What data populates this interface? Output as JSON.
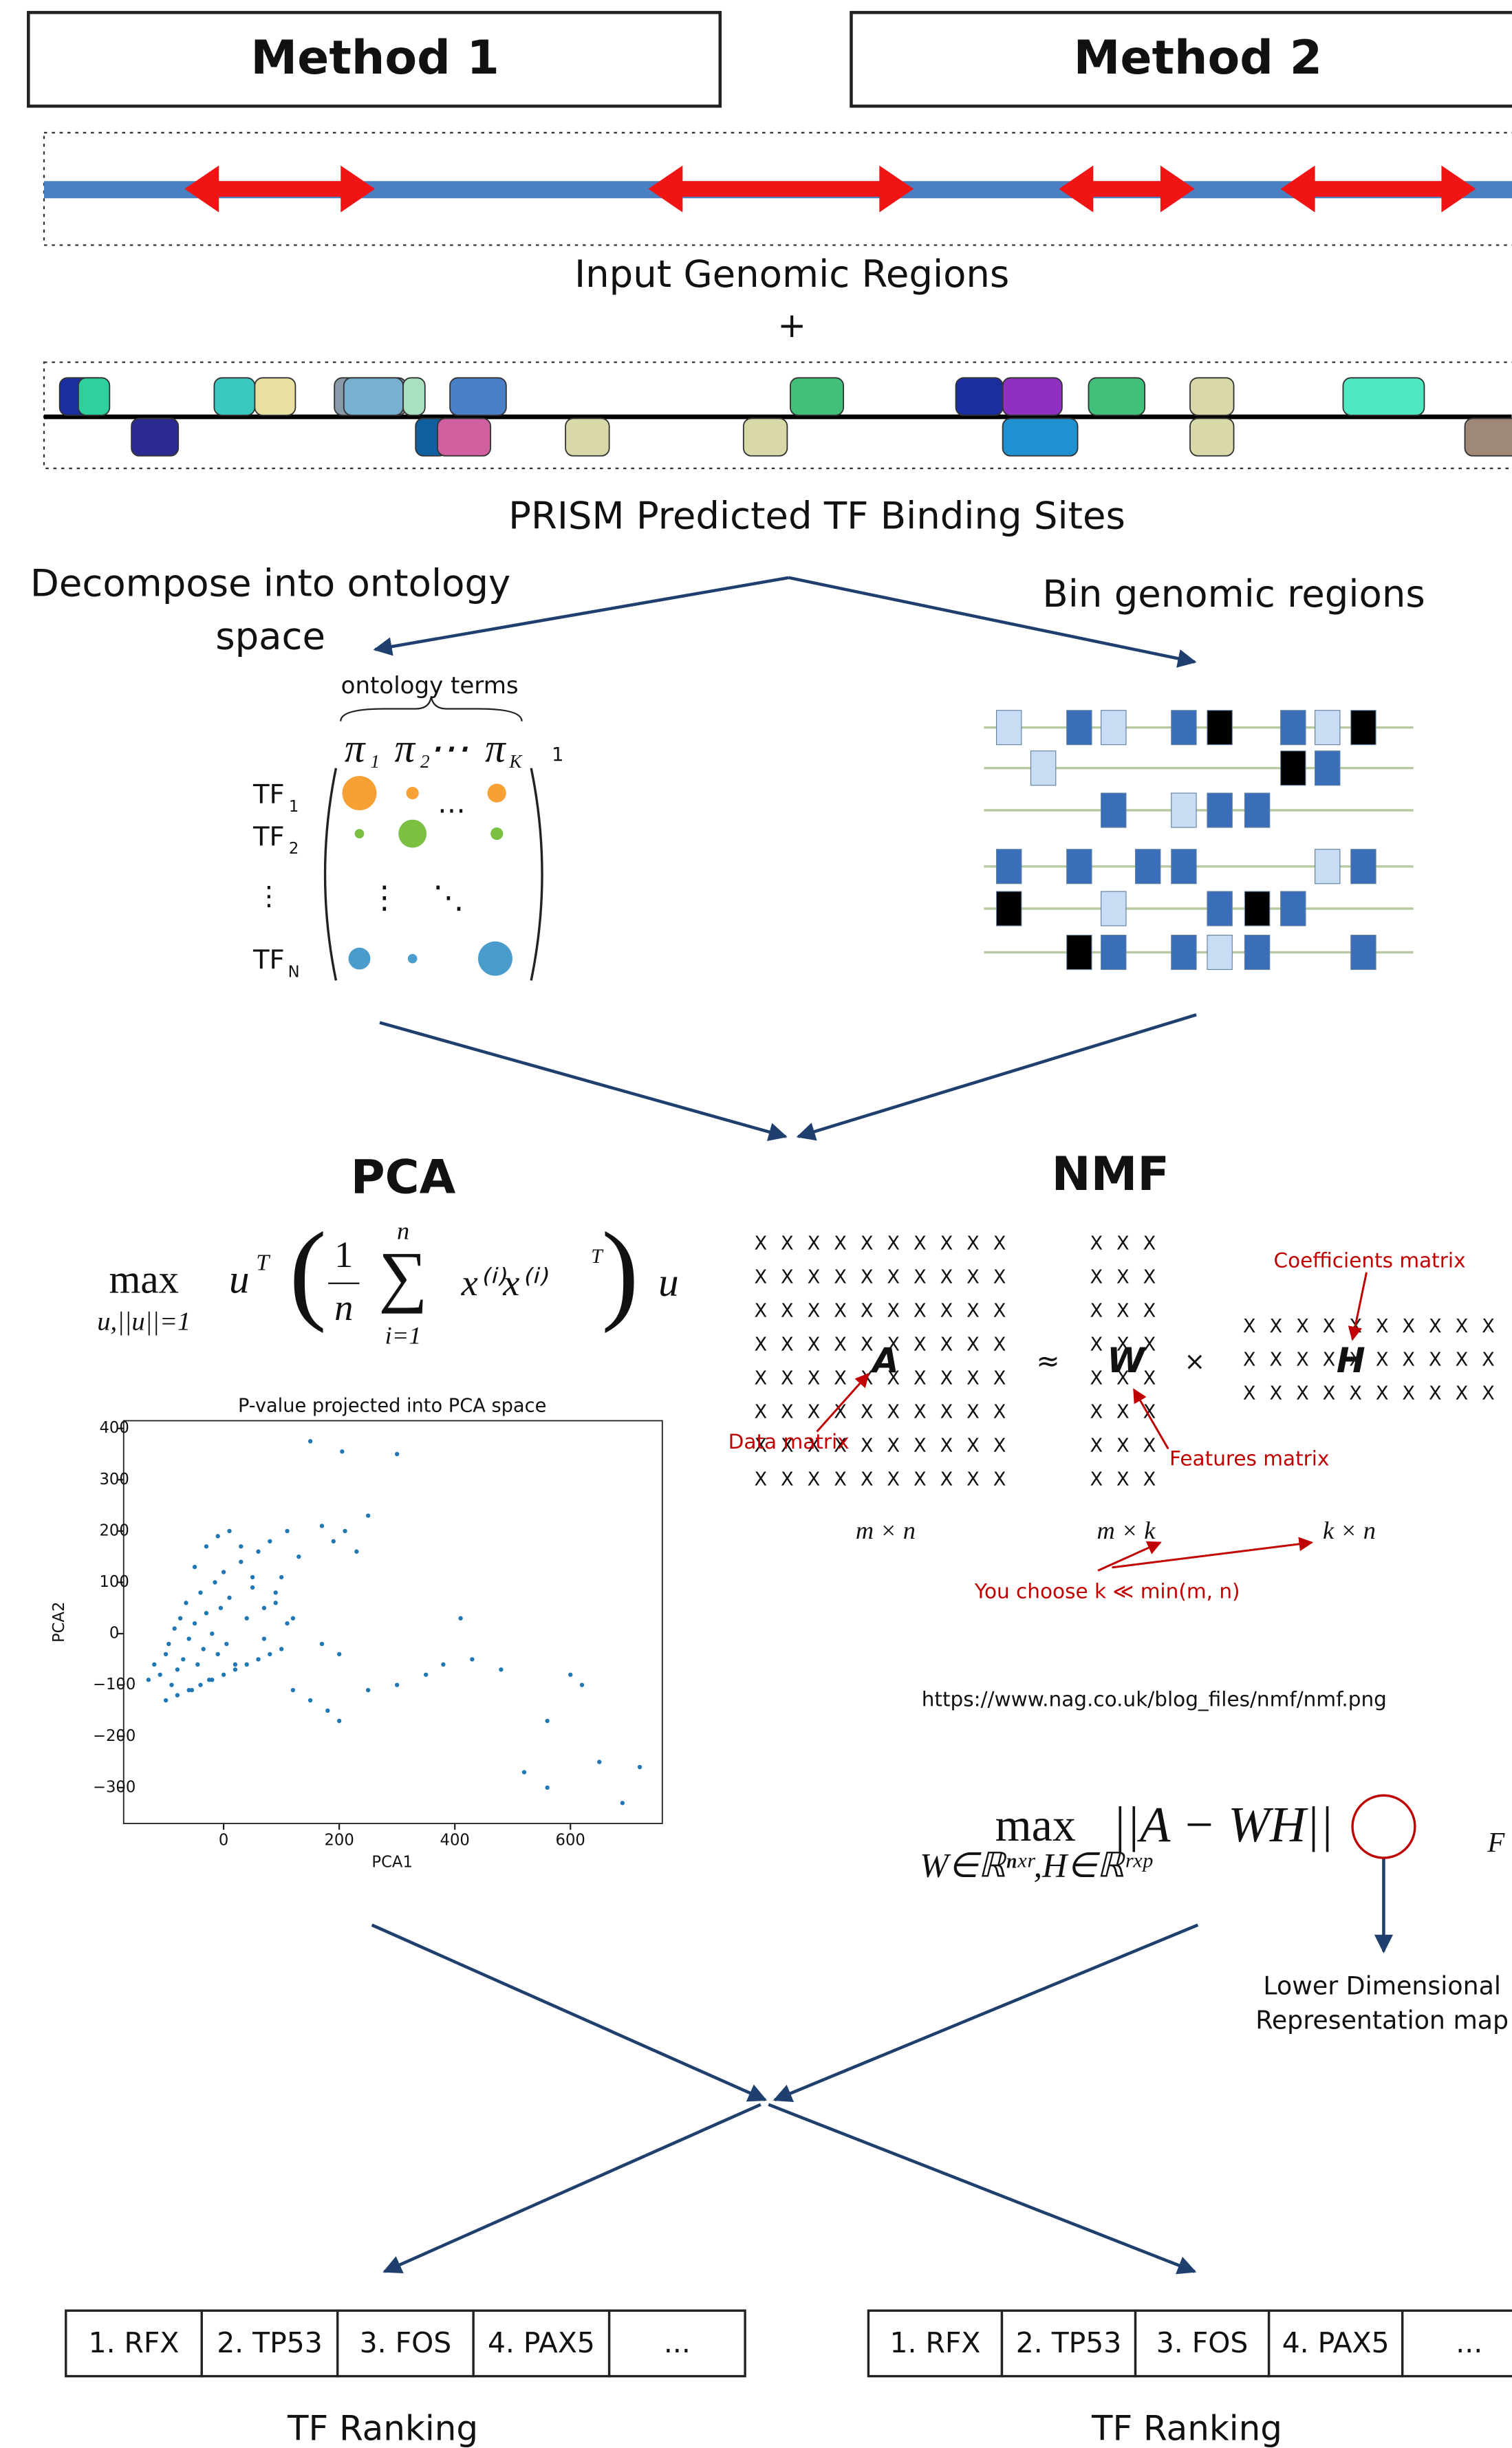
{
  "methods": [
    "Method 1",
    "Method 2"
  ],
  "input_label": "Input Genomic Regions",
  "plus": "+",
  "prism_label": "PRISM Predicted TF Binding Sites",
  "left_branch": [
    "Decompose into ontology",
    "space"
  ],
  "right_branch": "Bin genomic regions",
  "ontology": {
    "brace_label": "ontology terms",
    "columns": [
      "π",
      "π",
      "⋯",
      "π"
    ],
    "column_subs": [
      "1",
      "2",
      "",
      "K"
    ],
    "superscript": "1",
    "rows": [
      "TF",
      "TF",
      "⋮",
      "TF"
    ],
    "row_subs": [
      "1",
      "2",
      "",
      "N"
    ],
    "ellipses": [
      "⋯",
      "⋮",
      "⋱"
    ]
  },
  "pca": {
    "title": "PCA",
    "formula": {
      "max": "max",
      "sub": "u,||u||=1",
      "u": "u",
      "t": "T",
      "open": "(",
      "one": "1",
      "n": "n",
      "sigma": "∑",
      "top": "n",
      "bottom": "i=1",
      "x": "x⁽ⁱ⁾x⁽ⁱ⁾",
      "xt": "T",
      "close": ")",
      "u2": "u"
    }
  },
  "chart_data": {
    "type": "scatter",
    "title": "P-value projected into PCA space",
    "x_label": "PCA1",
    "y_label": "PCA2",
    "color": "#1f77b4",
    "xlim": [
      -173,
      759
    ],
    "ylim": [
      -370,
      415
    ],
    "xticks": [
      0,
      200,
      400,
      600
    ],
    "yticks": [
      400,
      300,
      200,
      100,
      0,
      {
        "value": -100,
        "label": "−100"
      },
      {
        "value": -200,
        "label": "−200"
      },
      {
        "value": -300,
        "label": "−300"
      }
    ],
    "x": [
      -130,
      -120,
      -110,
      -100,
      -95,
      -90,
      -85,
      -80,
      -75,
      -70,
      -65,
      -60,
      -55,
      -50,
      -45,
      -40,
      -35,
      -30,
      -25,
      -20,
      -15,
      -10,
      -5,
      0,
      5,
      10,
      20,
      30,
      40,
      50,
      60,
      70,
      80,
      90,
      100,
      110,
      120,
      130,
      -100,
      -80,
      -60,
      -40,
      -20,
      0,
      20,
      40,
      60,
      80,
      100,
      -50,
      -30,
      -10,
      10,
      30,
      50,
      70,
      90,
      110,
      150,
      205,
      300,
      250,
      170,
      210,
      190,
      230,
      120,
      150,
      180,
      200,
      250,
      300,
      410,
      430,
      480,
      520,
      560,
      600,
      560,
      650,
      690,
      720,
      620,
      350,
      380,
      200,
      170
    ],
    "y": [
      -90,
      -60,
      -80,
      -40,
      -20,
      -100,
      10,
      -70,
      30,
      -50,
      60,
      -10,
      -110,
      20,
      -60,
      80,
      -30,
      40,
      -90,
      0,
      100,
      -40,
      50,
      120,
      -20,
      70,
      -60,
      140,
      30,
      90,
      160,
      -10,
      180,
      60,
      110,
      200,
      30,
      150,
      -130,
      -120,
      -110,
      -100,
      -90,
      -80,
      -70,
      -60,
      -50,
      -40,
      -30,
      130,
      170,
      190,
      200,
      170,
      110,
      50,
      80,
      20,
      375,
      355,
      350,
      230,
      210,
      200,
      180,
      160,
      -110,
      -130,
      -150,
      -170,
      -110,
      -100,
      30,
      -50,
      -70,
      -270,
      -300,
      -80,
      -170,
      -250,
      -330,
      -260,
      -100,
      -80,
      -60,
      -40,
      -20
    ]
  },
  "nmf": {
    "title": "NMF",
    "cell": "X",
    "A": "A",
    "approx": "≈",
    "W": "W",
    "times": "×",
    "H": "H",
    "coefficients": "Coefficients matrix",
    "data_matrix": "Data matrix",
    "features": "Features matrix",
    "dims": [
      "m × n",
      "m × k",
      "k × n"
    ],
    "choose": "You choose k ≪ min(m, n)",
    "url": "https://www.nag.co.uk/blog_files/nmf/nmf.png",
    "formula": {
      "max": "max",
      "sub": "W∈ℝⁿˣʳ,H∈ℝʳˣᵖ",
      "body": "||A − WH||",
      "norm": "F"
    },
    "map_label": [
      "Lower Dimensional",
      "Representation map"
    ]
  },
  "rankings": [
    [
      "1. RFX",
      "2. TP53",
      "3. FOS",
      "4. PAX5",
      "..."
    ],
    [
      "1. RFX",
      "2. TP53",
      "3. FOS",
      "4. PAX5",
      "..."
    ]
  ],
  "ranking_labels": [
    "TF Ranking",
    "TF Ranking"
  ]
}
